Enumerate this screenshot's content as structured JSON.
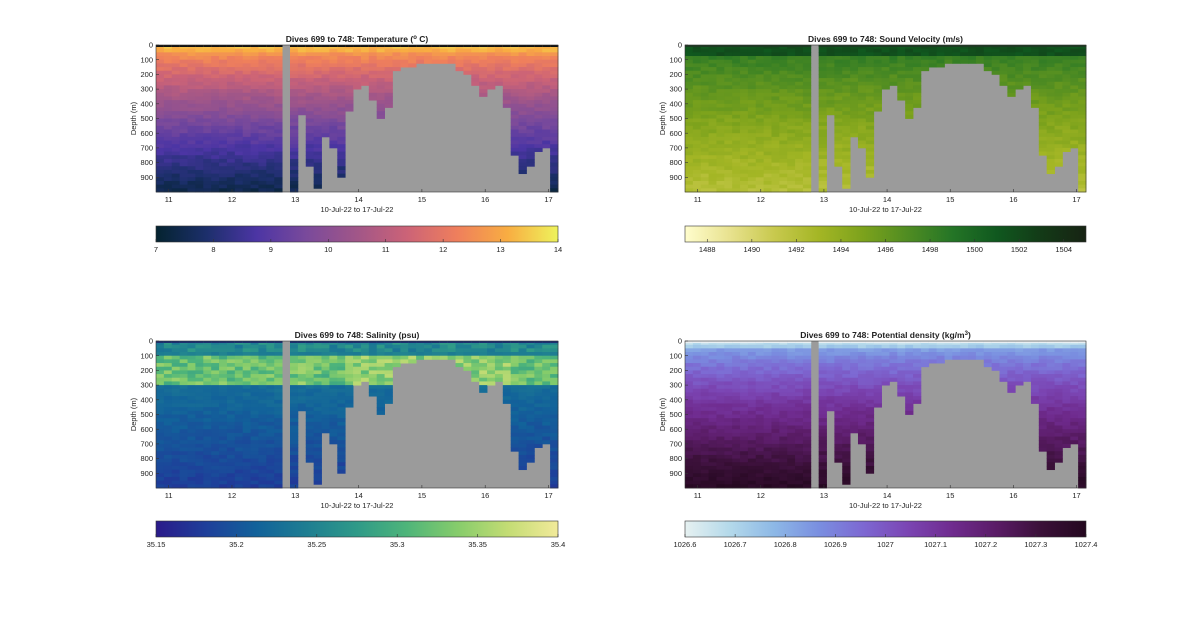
{
  "figure": {
    "background": "#ffffff",
    "missing_color": "#9b9b9b"
  },
  "chart_data": [
    {
      "type": "heatmap",
      "title_main": "Dives 699 to 748: Temperature (",
      "title_sup": "o",
      "title_tail": " C)",
      "xlabel": "10-Jul-22 to 17-Jul-22",
      "ylabel": "Depth (m)",
      "xlim": [
        10.8,
        17.15
      ],
      "ylim": [
        0,
        1000
      ],
      "x_ticks": [
        11,
        12,
        13,
        14,
        15,
        16,
        17
      ],
      "y_ticks": [
        0,
        100,
        200,
        300,
        400,
        500,
        600,
        700,
        800,
        900
      ],
      "colorbar": {
        "min": 7,
        "max": 14,
        "ticks": [
          7,
          8,
          9,
          10,
          11,
          12,
          13,
          14
        ],
        "colormap": "thermal",
        "colors": [
          "#04232f",
          "#1c2f6b",
          "#4c35a4",
          "#7a4a9b",
          "#a15688",
          "#cc6377",
          "#ef7f5c",
          "#f8ad42",
          "#eef35c"
        ]
      },
      "surface_value": 13.5,
      "deep_value": 7.4,
      "stripe": "#111111"
    },
    {
      "type": "heatmap",
      "title_main": "Dives 699 to 748: Sound Velocity (m/s)",
      "title_sup": "",
      "title_tail": "",
      "xlabel": "10-Jul-22 to 17-Jul-22",
      "ylabel": "Depth (m)",
      "xlim": [
        10.8,
        17.15
      ],
      "ylim": [
        0,
        1000
      ],
      "x_ticks": [
        11,
        12,
        13,
        14,
        15,
        16,
        17
      ],
      "y_ticks": [
        0,
        100,
        200,
        300,
        400,
        500,
        600,
        700,
        800,
        900
      ],
      "colorbar": {
        "min": 1487,
        "max": 1505,
        "ticks": [
          1488,
          1490,
          1492,
          1494,
          1496,
          1498,
          1500,
          1502,
          1504
        ],
        "colormap": "speed",
        "colors": [
          "#fffdcd",
          "#e8e28f",
          "#c8c94e",
          "#a4b625",
          "#7ca21c",
          "#4f8c22",
          "#247526",
          "#10581f",
          "#133a17",
          "#172313"
        ]
      },
      "surface_value": 1499.5,
      "deep_value": 1492,
      "stripe": "#1d3a22"
    },
    {
      "type": "heatmap",
      "title_main": "Dives 699 to 748: Salinity (psu)",
      "title_sup": "",
      "title_tail": "",
      "xlabel": "10-Jul-22 to 17-Jul-22",
      "ylabel": "Depth (m)",
      "xlim": [
        10.8,
        17.15
      ],
      "ylim": [
        0,
        1000
      ],
      "x_ticks": [
        11,
        12,
        13,
        14,
        15,
        16,
        17
      ],
      "y_ticks": [
        0,
        100,
        200,
        300,
        400,
        500,
        600,
        700,
        800,
        900
      ],
      "colorbar": {
        "min": 35.15,
        "max": 35.4,
        "ticks": [
          35.15,
          35.2,
          35.25,
          35.3,
          35.35,
          35.4
        ],
        "colormap": "haline",
        "colors": [
          "#2a1a8a",
          "#1e3f9a",
          "#12629a",
          "#1e7e92",
          "#2f9a88",
          "#4fb57a",
          "#86cc6b",
          "#c3dc74",
          "#f2ea9a"
        ]
      },
      "surface_value": 35.26,
      "deep_value": 35.18,
      "stripe": "#1c3070"
    },
    {
      "type": "heatmap",
      "title_main": "Dives 699 to 748: Potential density (kg/m",
      "title_sup": "3",
      "title_tail": ")",
      "xlabel": "10-Jul-22 to 17-Jul-22",
      "ylabel": "Depth (m)",
      "xlim": [
        10.8,
        17.15
      ],
      "ylim": [
        0,
        1000
      ],
      "x_ticks": [
        11,
        12,
        13,
        14,
        15,
        16,
        17
      ],
      "y_ticks": [
        0,
        100,
        200,
        300,
        400,
        500,
        600,
        700,
        800,
        900
      ],
      "colorbar": {
        "min": 1026.6,
        "max": 1027.4,
        "ticks": [
          1026.6,
          1026.7,
          1026.8,
          1026.9,
          1027,
          1027.1,
          1027.2,
          1027.3,
          1027.4
        ],
        "colormap": "dense",
        "colors": [
          "#e6f1f1",
          "#b4d9ea",
          "#8db8e6",
          "#7a8fe0",
          "#7d68d2",
          "#7b45b3",
          "#6f2b8e",
          "#5a1c66",
          "#3a1038",
          "#24081f"
        ]
      },
      "surface_value": 1026.75,
      "deep_value": 1027.38,
      "stripe": "#e9eef2"
    }
  ]
}
